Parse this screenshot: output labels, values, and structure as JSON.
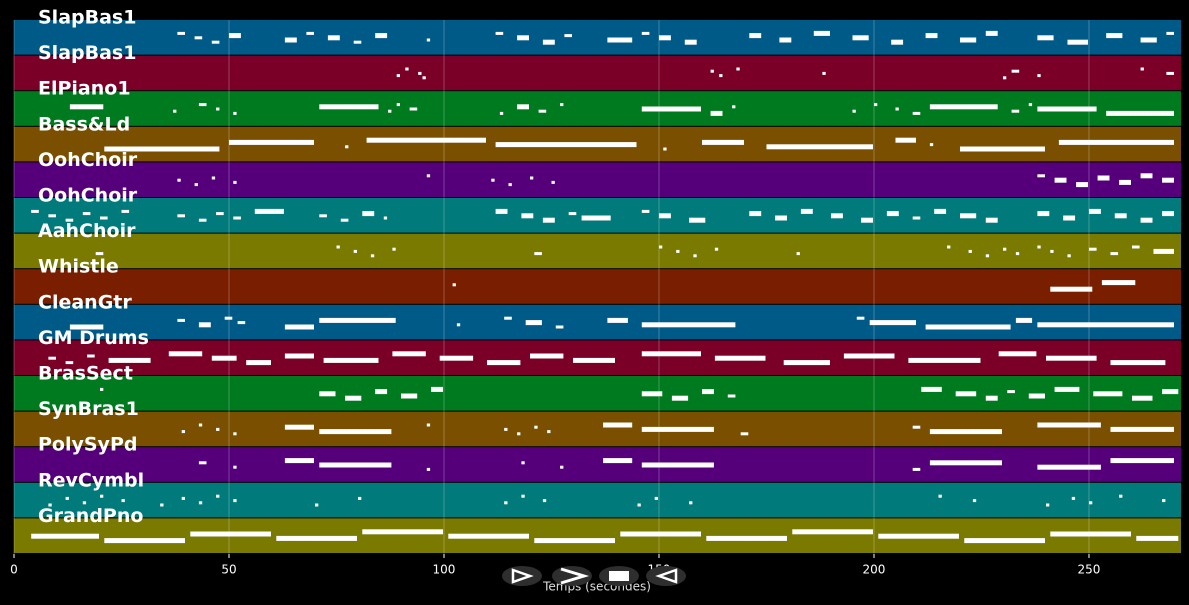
{
  "axis": {
    "label": "Temps (secondes)",
    "xlim": [
      0,
      271.4
    ],
    "xticks": [
      0,
      50,
      100,
      150,
      200,
      250
    ]
  },
  "tracks": [
    {
      "name": "SlapBas1",
      "color": "#005a87",
      "notes": [
        [
          38,
          40
        ],
        [
          42,
          44
        ],
        [
          46,
          48
        ],
        [
          50,
          53
        ],
        [
          63,
          66
        ],
        [
          68,
          70
        ],
        [
          73,
          76
        ],
        [
          79,
          81
        ],
        [
          84,
          87
        ],
        [
          96,
          97
        ],
        [
          112,
          114
        ],
        [
          117,
          120
        ],
        [
          123,
          126
        ],
        [
          128,
          130
        ],
        [
          138,
          144
        ],
        [
          146,
          148
        ],
        [
          150,
          153
        ],
        [
          156,
          159
        ],
        [
          171,
          174
        ],
        [
          178,
          181
        ],
        [
          186,
          190
        ],
        [
          195,
          199
        ],
        [
          204,
          207
        ],
        [
          212,
          215
        ],
        [
          220,
          224
        ],
        [
          226,
          229
        ],
        [
          238,
          242
        ],
        [
          245,
          250
        ],
        [
          254,
          258
        ],
        [
          262,
          266
        ],
        [
          268,
          270
        ]
      ]
    },
    {
      "name": "SlapBas1",
      "color": "#7a0028",
      "notes": [
        [
          89,
          90
        ],
        [
          91,
          92
        ],
        [
          94,
          95
        ],
        [
          95,
          96
        ],
        [
          162,
          163
        ],
        [
          164,
          165
        ],
        [
          168,
          169
        ],
        [
          188,
          189
        ],
        [
          230,
          231
        ],
        [
          232,
          234
        ],
        [
          238,
          239
        ],
        [
          262,
          263
        ],
        [
          268,
          270
        ]
      ]
    },
    {
      "name": "ElPiano1",
      "color": "#007a1e",
      "notes": [
        [
          13,
          21
        ],
        [
          37,
          38
        ],
        [
          43,
          45
        ],
        [
          47,
          48
        ],
        [
          51,
          52
        ],
        [
          71,
          85
        ],
        [
          87,
          88
        ],
        [
          89,
          90
        ],
        [
          92,
          94
        ],
        [
          113,
          114
        ],
        [
          117,
          120
        ],
        [
          122,
          124
        ],
        [
          127,
          128
        ],
        [
          146,
          160
        ],
        [
          162,
          165
        ],
        [
          167,
          168
        ],
        [
          195,
          196
        ],
        [
          200,
          201
        ],
        [
          205,
          206
        ],
        [
          209,
          211
        ],
        [
          213,
          229
        ],
        [
          232,
          234
        ],
        [
          236,
          237
        ],
        [
          238,
          252
        ],
        [
          254,
          270
        ]
      ]
    },
    {
      "name": "Bass&Ld",
      "color": "#7a5000",
      "notes": [
        [
          21,
          48
        ],
        [
          50,
          70
        ],
        [
          77,
          78
        ],
        [
          82,
          110
        ],
        [
          112,
          145
        ],
        [
          151,
          152
        ],
        [
          160,
          170
        ],
        [
          175,
          200
        ],
        [
          205,
          210
        ],
        [
          213,
          214
        ],
        [
          220,
          240
        ],
        [
          243,
          270
        ]
      ]
    },
    {
      "name": "OohChoir",
      "color": "#55007a",
      "notes": [
        [
          38,
          39
        ],
        [
          42,
          43
        ],
        [
          46,
          47
        ],
        [
          51,
          52
        ],
        [
          96,
          97
        ],
        [
          111,
          112
        ],
        [
          115,
          116
        ],
        [
          120,
          121
        ],
        [
          125,
          126
        ],
        [
          238,
          240
        ],
        [
          242,
          245
        ],
        [
          247,
          250
        ],
        [
          252,
          255
        ],
        [
          257,
          260
        ],
        [
          262,
          265
        ],
        [
          267,
          270
        ]
      ]
    },
    {
      "name": "OohChoir",
      "color": "#007a7a",
      "notes": [
        [
          4,
          6
        ],
        [
          8,
          10
        ],
        [
          12,
          14
        ],
        [
          16,
          18
        ],
        [
          20,
          22
        ],
        [
          25,
          27
        ],
        [
          38,
          40
        ],
        [
          43,
          45
        ],
        [
          47,
          49
        ],
        [
          51,
          53
        ],
        [
          56,
          63
        ],
        [
          71,
          73
        ],
        [
          76,
          78
        ],
        [
          81,
          84
        ],
        [
          86,
          87
        ],
        [
          112,
          115
        ],
        [
          118,
          121
        ],
        [
          123,
          126
        ],
        [
          129,
          131
        ],
        [
          132,
          139
        ],
        [
          146,
          148
        ],
        [
          150,
          153
        ],
        [
          157,
          161
        ],
        [
          171,
          174
        ],
        [
          177,
          180
        ],
        [
          183,
          186
        ],
        [
          190,
          193
        ],
        [
          197,
          200
        ],
        [
          203,
          206
        ],
        [
          209,
          211
        ],
        [
          214,
          217
        ],
        [
          220,
          224
        ],
        [
          226,
          229
        ],
        [
          238,
          241
        ],
        [
          244,
          247
        ],
        [
          250,
          253
        ],
        [
          256,
          259
        ],
        [
          262,
          265
        ],
        [
          267,
          270
        ]
      ]
    },
    {
      "name": "AahChoir",
      "color": "#7a7a00",
      "notes": [
        [
          19,
          21
        ],
        [
          75,
          76
        ],
        [
          79,
          80
        ],
        [
          83,
          84
        ],
        [
          88,
          89
        ],
        [
          121,
          123
        ],
        [
          150,
          151
        ],
        [
          154,
          155
        ],
        [
          158,
          159
        ],
        [
          163,
          164
        ],
        [
          182,
          183
        ],
        [
          217,
          218
        ],
        [
          222,
          223
        ],
        [
          226,
          227
        ],
        [
          230,
          231
        ],
        [
          233,
          234
        ],
        [
          238,
          239
        ],
        [
          241,
          242
        ],
        [
          245,
          246
        ],
        [
          250,
          252
        ],
        [
          255,
          257
        ],
        [
          260,
          262
        ],
        [
          265,
          270
        ]
      ]
    },
    {
      "name": "Whistle",
      "color": "#7a1e00",
      "notes": [
        [
          102,
          103
        ],
        [
          241,
          251
        ],
        [
          253,
          261
        ]
      ]
    },
    {
      "name": "CleanGtr",
      "color": "#005a87",
      "notes": [
        [
          13,
          21
        ],
        [
          38,
          40
        ],
        [
          43,
          46
        ],
        [
          49,
          51
        ],
        [
          52,
          54
        ],
        [
          63,
          70
        ],
        [
          71,
          89
        ],
        [
          103,
          104
        ],
        [
          114,
          116
        ],
        [
          119,
          123
        ],
        [
          126,
          128
        ],
        [
          138,
          143
        ],
        [
          146,
          168
        ],
        [
          196,
          198
        ],
        [
          199,
          210
        ],
        [
          212,
          232
        ],
        [
          233,
          237
        ],
        [
          238,
          270
        ]
      ]
    },
    {
      "name": "GM Drums",
      "color": "#7a0028",
      "notes": [
        [
          8,
          10
        ],
        [
          12,
          14
        ],
        [
          17,
          19
        ],
        [
          22,
          32
        ],
        [
          36,
          44
        ],
        [
          46,
          52
        ],
        [
          54,
          60
        ],
        [
          63,
          70
        ],
        [
          72,
          85
        ],
        [
          88,
          96
        ],
        [
          99,
          107
        ],
        [
          110,
          118
        ],
        [
          120,
          128
        ],
        [
          130,
          140
        ],
        [
          146,
          160
        ],
        [
          163,
          175
        ],
        [
          179,
          190
        ],
        [
          193,
          205
        ],
        [
          208,
          225
        ],
        [
          229,
          238
        ],
        [
          240,
          252
        ],
        [
          255,
          268
        ]
      ]
    },
    {
      "name": "BrasSect",
      "color": "#007a1e",
      "notes": [
        [
          20,
          21
        ],
        [
          71,
          75
        ],
        [
          77,
          81
        ],
        [
          84,
          87
        ],
        [
          90,
          94
        ],
        [
          97,
          100
        ],
        [
          146,
          151
        ],
        [
          153,
          157
        ],
        [
          160,
          163
        ],
        [
          166,
          168
        ],
        [
          211,
          216
        ],
        [
          219,
          224
        ],
        [
          226,
          229
        ],
        [
          231,
          233
        ],
        [
          236,
          240
        ],
        [
          242,
          248
        ],
        [
          251,
          258
        ],
        [
          260,
          265
        ],
        [
          267,
          271
        ]
      ]
    },
    {
      "name": "SynBras1",
      "color": "#7a5000",
      "notes": [
        [
          39,
          40
        ],
        [
          43,
          44
        ],
        [
          47,
          48
        ],
        [
          51,
          52
        ],
        [
          63,
          70
        ],
        [
          71,
          88
        ],
        [
          96,
          97
        ],
        [
          114,
          115
        ],
        [
          117,
          118
        ],
        [
          121,
          122
        ],
        [
          124,
          125
        ],
        [
          137,
          144
        ],
        [
          146,
          163
        ],
        [
          169,
          171
        ],
        [
          209,
          211
        ],
        [
          213,
          230
        ],
        [
          238,
          253
        ],
        [
          255,
          270
        ]
      ]
    },
    {
      "name": "PolySyPd",
      "color": "#55007a",
      "notes": [
        [
          43,
          45
        ],
        [
          51,
          52
        ],
        [
          63,
          70
        ],
        [
          71,
          88
        ],
        [
          96,
          97
        ],
        [
          118,
          119
        ],
        [
          127,
          128
        ],
        [
          137,
          144
        ],
        [
          146,
          163
        ],
        [
          209,
          211
        ],
        [
          213,
          230
        ],
        [
          238,
          253
        ],
        [
          255,
          270
        ]
      ]
    },
    {
      "name": "RevCymbl",
      "color": "#007a7a",
      "notes": [
        [
          8,
          9
        ],
        [
          12,
          13
        ],
        [
          16,
          17
        ],
        [
          20,
          21
        ],
        [
          25,
          26
        ],
        [
          34,
          35
        ],
        [
          39,
          40
        ],
        [
          43,
          44
        ],
        [
          47,
          48
        ],
        [
          51,
          52
        ],
        [
          70,
          71
        ],
        [
          80,
          81
        ],
        [
          114,
          115
        ],
        [
          118,
          119
        ],
        [
          123,
          124
        ],
        [
          145,
          146
        ],
        [
          149,
          150
        ],
        [
          157,
          158
        ],
        [
          215,
          216
        ],
        [
          223,
          224
        ],
        [
          240,
          241
        ],
        [
          246,
          247
        ],
        [
          250,
          251
        ],
        [
          257,
          258
        ],
        [
          267,
          268
        ]
      ]
    },
    {
      "name": "GrandPno",
      "color": "#7a7a00",
      "notes": [
        [
          4,
          20
        ],
        [
          21,
          40
        ],
        [
          41,
          60
        ],
        [
          61,
          80
        ],
        [
          81,
          100
        ],
        [
          101,
          120
        ],
        [
          121,
          140
        ],
        [
          141,
          160
        ],
        [
          161,
          180
        ],
        [
          181,
          200
        ],
        [
          201,
          220
        ],
        [
          221,
          240
        ],
        [
          241,
          260
        ],
        [
          261,
          271
        ]
      ]
    }
  ]
}
